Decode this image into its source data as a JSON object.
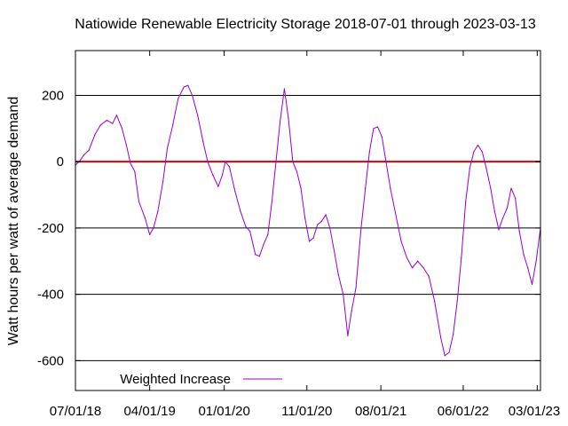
{
  "chart_data": {
    "type": "line",
    "title": "Natiowide Renewable Electricity Storage 2018-07-01 through 2023-03-13",
    "xlabel": "",
    "ylabel": "Watt hours per watt of average demand",
    "x_start": "2018-07-01",
    "x_end": "2023-03-13",
    "xlim": [
      "2018-07-01",
      "2023-03-13"
    ],
    "ylim": [
      -690,
      335
    ],
    "x_ticks": [
      {
        "date": "2018-07-01",
        "label": "07/01/18"
      },
      {
        "date": "2019-04-01",
        "label": "04/01/19"
      },
      {
        "date": "2020-01-01",
        "label": "01/01/20"
      },
      {
        "date": "2020-11-01",
        "label": "11/01/20"
      },
      {
        "date": "2021-08-01",
        "label": "08/01/21"
      },
      {
        "date": "2022-06-01",
        "label": "06/01/22"
      },
      {
        "date": "2023-03-01",
        "label": "03/01/23"
      }
    ],
    "y_ticks": [
      {
        "value": 200,
        "label": "200"
      },
      {
        "value": 0,
        "label": "0"
      },
      {
        "value": -200,
        "label": "-200"
      },
      {
        "value": -400,
        "label": "-400"
      },
      {
        "value": -600,
        "label": "-600"
      }
    ],
    "grid": true,
    "legend_position": "bottom-left",
    "reference_line": {
      "value": 0,
      "color": "#e00000"
    },
    "series": [
      {
        "name": "Weighted Increase",
        "color": "#9400d3",
        "points": [
          [
            "2018-07-01",
            -10
          ],
          [
            "2018-07-15",
            0
          ],
          [
            "2018-08-01",
            20
          ],
          [
            "2018-08-20",
            35
          ],
          [
            "2018-09-10",
            80
          ],
          [
            "2018-10-01",
            110
          ],
          [
            "2018-10-25",
            125
          ],
          [
            "2018-11-15",
            115
          ],
          [
            "2018-11-30",
            140
          ],
          [
            "2018-12-20",
            100
          ],
          [
            "2019-01-05",
            50
          ],
          [
            "2019-01-20",
            -5
          ],
          [
            "2019-02-05",
            -30
          ],
          [
            "2019-02-20",
            -120
          ],
          [
            "2019-03-15",
            -170
          ],
          [
            "2019-04-01",
            -220
          ],
          [
            "2019-04-15",
            -200
          ],
          [
            "2019-05-01",
            -150
          ],
          [
            "2019-05-20",
            -60
          ],
          [
            "2019-06-05",
            40
          ],
          [
            "2019-06-25",
            110
          ],
          [
            "2019-07-15",
            190
          ],
          [
            "2019-08-05",
            225
          ],
          [
            "2019-08-20",
            230
          ],
          [
            "2019-09-05",
            200
          ],
          [
            "2019-09-25",
            140
          ],
          [
            "2019-10-15",
            60
          ],
          [
            "2019-11-01",
            0
          ],
          [
            "2019-11-20",
            -40
          ],
          [
            "2019-12-10",
            -75
          ],
          [
            "2019-12-25",
            -40
          ],
          [
            "2020-01-05",
            0
          ],
          [
            "2020-01-20",
            -15
          ],
          [
            "2020-02-10",
            -90
          ],
          [
            "2020-03-01",
            -150
          ],
          [
            "2020-03-20",
            -195
          ],
          [
            "2020-04-05",
            -210
          ],
          [
            "2020-04-25",
            -280
          ],
          [
            "2020-05-10",
            -285
          ],
          [
            "2020-05-25",
            -250
          ],
          [
            "2020-06-10",
            -220
          ],
          [
            "2020-06-25",
            -120
          ],
          [
            "2020-07-10",
            0
          ],
          [
            "2020-07-25",
            120
          ],
          [
            "2020-08-10",
            220
          ],
          [
            "2020-08-25",
            130
          ],
          [
            "2020-09-10",
            0
          ],
          [
            "2020-09-25",
            -30
          ],
          [
            "2020-10-10",
            -80
          ],
          [
            "2020-10-25",
            -170
          ],
          [
            "2020-11-10",
            -240
          ],
          [
            "2020-11-25",
            -230
          ],
          [
            "2020-12-10",
            -190
          ],
          [
            "2020-12-25",
            -180
          ],
          [
            "2021-01-10",
            -160
          ],
          [
            "2021-01-25",
            -200
          ],
          [
            "2021-02-10",
            -270
          ],
          [
            "2021-02-25",
            -340
          ],
          [
            "2021-03-15",
            -400
          ],
          [
            "2021-04-01",
            -525
          ],
          [
            "2021-04-15",
            -450
          ],
          [
            "2021-05-01",
            -380
          ],
          [
            "2021-05-20",
            -200
          ],
          [
            "2021-06-05",
            -80
          ],
          [
            "2021-06-20",
            30
          ],
          [
            "2021-07-05",
            100
          ],
          [
            "2021-07-20",
            105
          ],
          [
            "2021-08-05",
            75
          ],
          [
            "2021-08-20",
            0
          ],
          [
            "2021-09-05",
            -80
          ],
          [
            "2021-09-25",
            -160
          ],
          [
            "2021-10-15",
            -240
          ],
          [
            "2021-11-05",
            -290
          ],
          [
            "2021-11-25",
            -320
          ],
          [
            "2021-12-15",
            -300
          ],
          [
            "2022-01-05",
            -320
          ],
          [
            "2022-01-25",
            -345
          ],
          [
            "2022-02-15",
            -420
          ],
          [
            "2022-03-10",
            -530
          ],
          [
            "2022-03-25",
            -585
          ],
          [
            "2022-04-10",
            -575
          ],
          [
            "2022-04-25",
            -520
          ],
          [
            "2022-05-10",
            -420
          ],
          [
            "2022-05-25",
            -290
          ],
          [
            "2022-06-10",
            -120
          ],
          [
            "2022-06-25",
            -20
          ],
          [
            "2022-07-10",
            30
          ],
          [
            "2022-07-25",
            50
          ],
          [
            "2022-08-10",
            30
          ],
          [
            "2022-08-25",
            -20
          ],
          [
            "2022-09-10",
            -80
          ],
          [
            "2022-09-25",
            -150
          ],
          [
            "2022-10-10",
            -205
          ],
          [
            "2022-10-25",
            -170
          ],
          [
            "2022-11-10",
            -140
          ],
          [
            "2022-11-25",
            -80
          ],
          [
            "2022-12-10",
            -110
          ],
          [
            "2022-12-25",
            -210
          ],
          [
            "2023-01-10",
            -280
          ],
          [
            "2023-01-25",
            -320
          ],
          [
            "2023-02-10",
            -370
          ],
          [
            "2023-02-25",
            -300
          ],
          [
            "2023-03-13",
            -200
          ]
        ]
      }
    ]
  }
}
